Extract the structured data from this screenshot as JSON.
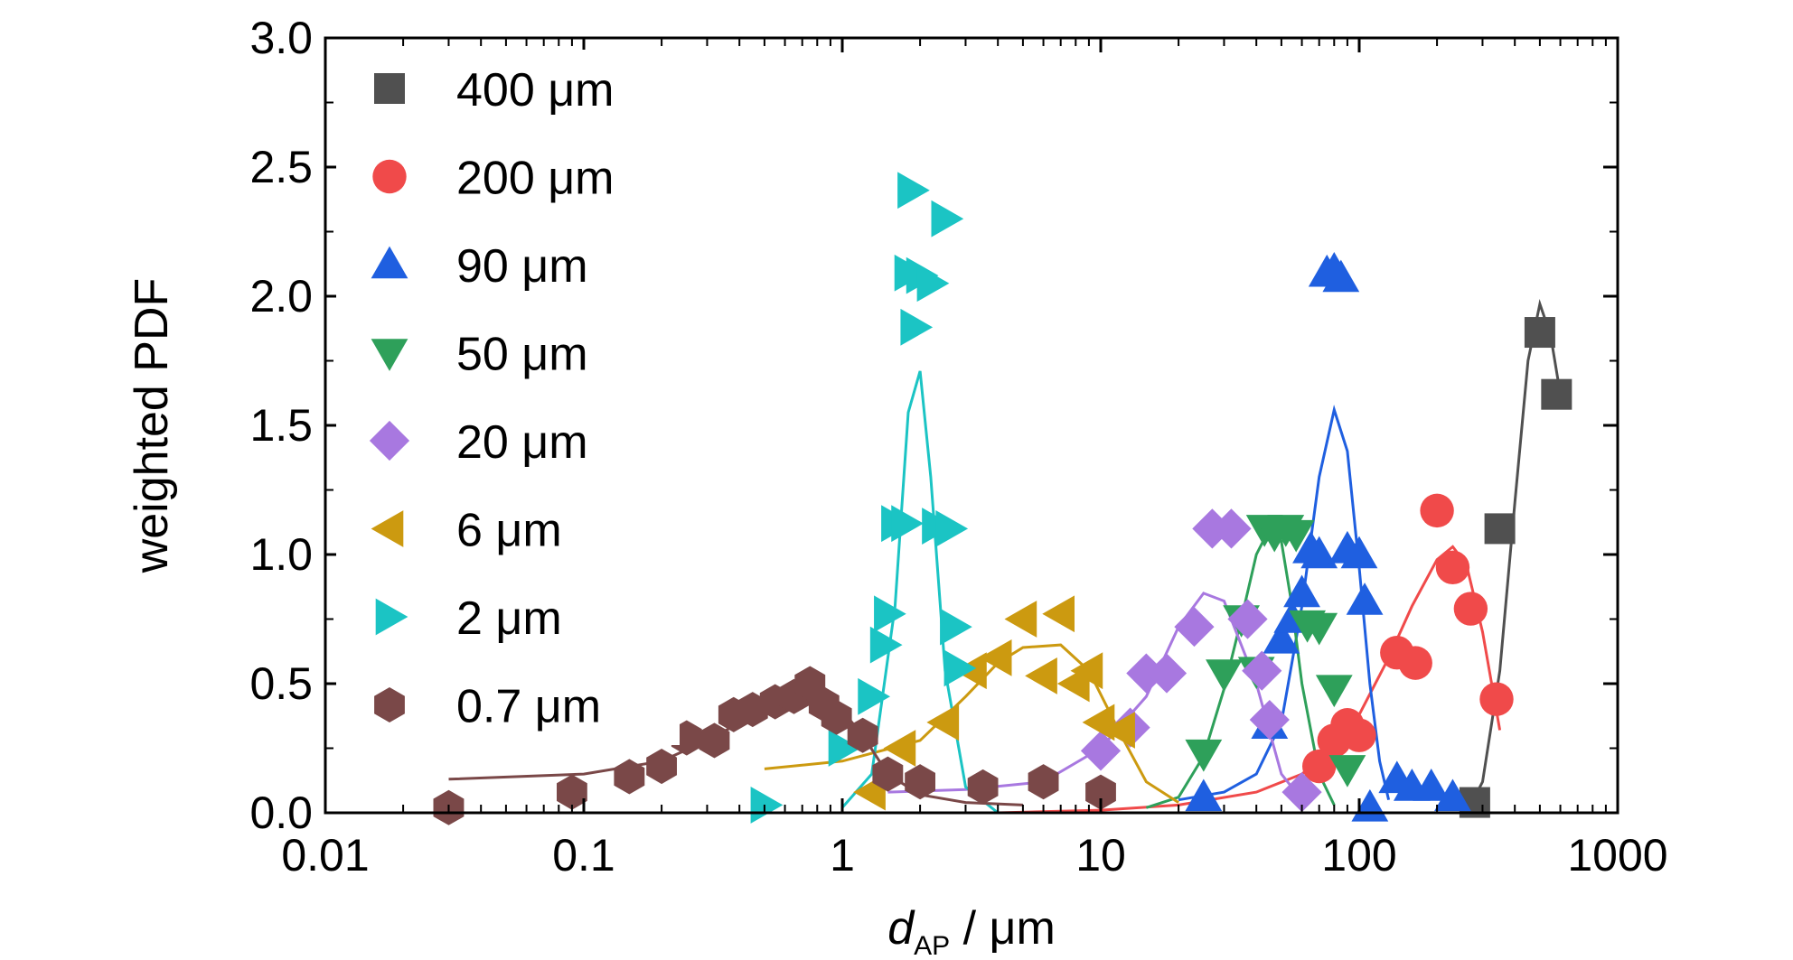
{
  "chart_data": {
    "type": "scatter",
    "xlabel": {
      "italic": "d",
      "subscript": "AP",
      "rest": " / μm"
    },
    "ylabel": "weighted PDF",
    "x_scale": "log",
    "xlim": [
      0.01,
      1000
    ],
    "ylim": [
      0,
      3.0
    ],
    "x_ticks": [
      0.01,
      0.1,
      1,
      10,
      100,
      1000
    ],
    "x_tick_labels": [
      "0.01",
      "0.1",
      "1",
      "10",
      "100",
      "1000"
    ],
    "y_ticks": [
      0,
      0.5,
      1.0,
      1.5,
      2.0,
      2.5,
      3.0
    ],
    "y_tick_labels": [
      "0.0",
      "0.5",
      "1.0",
      "1.5",
      "2.0",
      "2.5",
      "3.0"
    ],
    "legend_position": "top-left",
    "grid": false,
    "series": [
      {
        "name": "400 μm",
        "marker": "square",
        "color": "#505050",
        "points": [
          [
            280,
            0.04
          ],
          [
            350,
            1.1
          ],
          [
            500,
            1.86
          ],
          [
            580,
            1.62
          ]
        ],
        "fit": [
          [
            260,
            0.0
          ],
          [
            300,
            0.12
          ],
          [
            350,
            0.55
          ],
          [
            400,
            1.2
          ],
          [
            450,
            1.75
          ],
          [
            500,
            1.97
          ],
          [
            550,
            1.85
          ],
          [
            600,
            1.62
          ]
        ]
      },
      {
        "name": "200 μm",
        "marker": "circle",
        "color": "#f04a4a",
        "points": [
          [
            70,
            0.18
          ],
          [
            80,
            0.28
          ],
          [
            90,
            0.34
          ],
          [
            100,
            0.3
          ],
          [
            140,
            0.62
          ],
          [
            165,
            0.58
          ],
          [
            200,
            1.17
          ],
          [
            230,
            0.95
          ],
          [
            270,
            0.79
          ],
          [
            340,
            0.44
          ]
        ],
        "fit": [
          [
            4,
            0.0
          ],
          [
            10,
            0.01
          ],
          [
            20,
            0.03
          ],
          [
            40,
            0.08
          ],
          [
            60,
            0.15
          ],
          [
            80,
            0.25
          ],
          [
            100,
            0.38
          ],
          [
            130,
            0.6
          ],
          [
            160,
            0.8
          ],
          [
            200,
            0.98
          ],
          [
            230,
            1.03
          ],
          [
            260,
            0.96
          ],
          [
            300,
            0.7
          ],
          [
            350,
            0.32
          ]
        ]
      },
      {
        "name": "90 μm",
        "marker": "triangle-up",
        "color": "#1f5fe0",
        "points": [
          [
            25,
            0.06
          ],
          [
            45,
            0.34
          ],
          [
            50,
            0.67
          ],
          [
            55,
            0.75
          ],
          [
            60,
            0.85
          ],
          [
            65,
            1.02
          ],
          [
            70,
            1.0
          ],
          [
            75,
            2.09
          ],
          [
            80,
            2.1
          ],
          [
            85,
            2.07
          ],
          [
            90,
            1.02
          ],
          [
            100,
            1.0
          ],
          [
            105,
            0.82
          ],
          [
            110,
            0.02
          ],
          [
            140,
            0.13
          ],
          [
            160,
            0.1
          ],
          [
            190,
            0.1
          ],
          [
            230,
            0.06
          ]
        ],
        "fit": [
          [
            20,
            0.05
          ],
          [
            30,
            0.08
          ],
          [
            40,
            0.15
          ],
          [
            50,
            0.35
          ],
          [
            60,
            0.8
          ],
          [
            70,
            1.3
          ],
          [
            80,
            1.56
          ],
          [
            90,
            1.4
          ],
          [
            100,
            0.95
          ],
          [
            110,
            0.5
          ],
          [
            120,
            0.2
          ],
          [
            130,
            0.05
          ]
        ]
      },
      {
        "name": "50 μm",
        "marker": "triangle-down",
        "color": "#2ea05a",
        "points": [
          [
            25,
            0.23
          ],
          [
            30,
            0.54
          ],
          [
            35,
            0.75
          ],
          [
            40,
            0.55
          ],
          [
            43,
            1.1
          ],
          [
            47,
            1.08
          ],
          [
            52,
            1.1
          ],
          [
            57,
            1.08
          ],
          [
            63,
            0.73
          ],
          [
            70,
            0.72
          ],
          [
            80,
            0.48
          ],
          [
            90,
            0.17
          ]
        ],
        "fit": [
          [
            15,
            0.02
          ],
          [
            20,
            0.06
          ],
          [
            25,
            0.22
          ],
          [
            30,
            0.48
          ],
          [
            35,
            0.75
          ],
          [
            40,
            1.0
          ],
          [
            45,
            1.1
          ],
          [
            50,
            1.05
          ],
          [
            55,
            0.8
          ],
          [
            60,
            0.5
          ],
          [
            70,
            0.15
          ],
          [
            80,
            0.03
          ]
        ]
      },
      {
        "name": "20 μm",
        "marker": "diamond",
        "color": "#a878e0",
        "points": [
          [
            10,
            0.24
          ],
          [
            13,
            0.33
          ],
          [
            15,
            0.54
          ],
          [
            18,
            0.54
          ],
          [
            23,
            0.72
          ],
          [
            27,
            1.1
          ],
          [
            32,
            1.1
          ],
          [
            37,
            0.75
          ],
          [
            42,
            0.55
          ],
          [
            45,
            0.36
          ],
          [
            60,
            0.08
          ]
        ],
        "fit": [
          [
            1.5,
            0.08
          ],
          [
            3,
            0.09
          ],
          [
            6,
            0.12
          ],
          [
            10,
            0.25
          ],
          [
            15,
            0.45
          ],
          [
            20,
            0.72
          ],
          [
            25,
            0.85
          ],
          [
            30,
            0.82
          ],
          [
            40,
            0.5
          ],
          [
            50,
            0.15
          ],
          [
            60,
            0.05
          ]
        ]
      },
      {
        "name": "6 μm",
        "marker": "triangle-left",
        "color": "#cc9a10",
        "points": [
          [
            1.3,
            0.08
          ],
          [
            1.7,
            0.25
          ],
          [
            2.5,
            0.35
          ],
          [
            3.2,
            0.55
          ],
          [
            4,
            0.6
          ],
          [
            5,
            0.75
          ],
          [
            6,
            0.53
          ],
          [
            7,
            0.77
          ],
          [
            8,
            0.5
          ],
          [
            9,
            0.55
          ],
          [
            10,
            0.35
          ],
          [
            12,
            0.32
          ]
        ],
        "fit": [
          [
            0.5,
            0.17
          ],
          [
            1,
            0.2
          ],
          [
            2,
            0.28
          ],
          [
            3,
            0.45
          ],
          [
            4,
            0.58
          ],
          [
            5,
            0.64
          ],
          [
            7,
            0.65
          ],
          [
            9,
            0.55
          ],
          [
            12,
            0.3
          ],
          [
            15,
            0.12
          ],
          [
            20,
            0.04
          ]
        ]
      },
      {
        "name": "2 μm",
        "marker": "triangle-right",
        "color": "#1bc4c4",
        "points": [
          [
            0.5,
            0.03
          ],
          [
            1.0,
            0.25
          ],
          [
            1.3,
            0.45
          ],
          [
            1.45,
            0.65
          ],
          [
            1.5,
            0.77
          ],
          [
            1.6,
            1.12
          ],
          [
            1.75,
            1.12
          ],
          [
            1.8,
            2.09
          ],
          [
            1.85,
            2.41
          ],
          [
            1.9,
            1.88
          ],
          [
            2.0,
            2.08
          ],
          [
            2.2,
            2.05
          ],
          [
            2.3,
            1.11
          ],
          [
            2.5,
            2.3
          ],
          [
            2.6,
            1.1
          ],
          [
            2.7,
            0.72
          ],
          [
            2.8,
            0.56
          ]
        ],
        "fit": [
          [
            1.0,
            0.02
          ],
          [
            1.3,
            0.15
          ],
          [
            1.6,
            0.8
          ],
          [
            1.8,
            1.55
          ],
          [
            2.0,
            1.71
          ],
          [
            2.2,
            1.3
          ],
          [
            2.5,
            0.55
          ],
          [
            3.0,
            0.1
          ],
          [
            4.0,
            0.0
          ]
        ]
      },
      {
        "name": "0.7 μm",
        "marker": "hexagon",
        "color": "#7a4848",
        "points": [
          [
            0.03,
            0.02
          ],
          [
            0.09,
            0.08
          ],
          [
            0.15,
            0.14
          ],
          [
            0.2,
            0.18
          ],
          [
            0.25,
            0.29
          ],
          [
            0.32,
            0.28
          ],
          [
            0.38,
            0.38
          ],
          [
            0.45,
            0.4
          ],
          [
            0.55,
            0.43
          ],
          [
            0.65,
            0.45
          ],
          [
            0.75,
            0.5
          ],
          [
            0.85,
            0.42
          ],
          [
            0.95,
            0.37
          ],
          [
            1.2,
            0.3
          ],
          [
            1.5,
            0.15
          ],
          [
            2,
            0.12
          ],
          [
            3.5,
            0.1
          ],
          [
            6,
            0.12
          ],
          [
            10,
            0.08
          ]
        ],
        "fit": [
          [
            0.03,
            0.13
          ],
          [
            0.1,
            0.15
          ],
          [
            0.2,
            0.2
          ],
          [
            0.3,
            0.28
          ],
          [
            0.5,
            0.4
          ],
          [
            0.7,
            0.5
          ],
          [
            0.9,
            0.45
          ],
          [
            1.2,
            0.3
          ],
          [
            1.5,
            0.15
          ],
          [
            2,
            0.07
          ],
          [
            3,
            0.04
          ],
          [
            5,
            0.03
          ]
        ]
      }
    ]
  }
}
